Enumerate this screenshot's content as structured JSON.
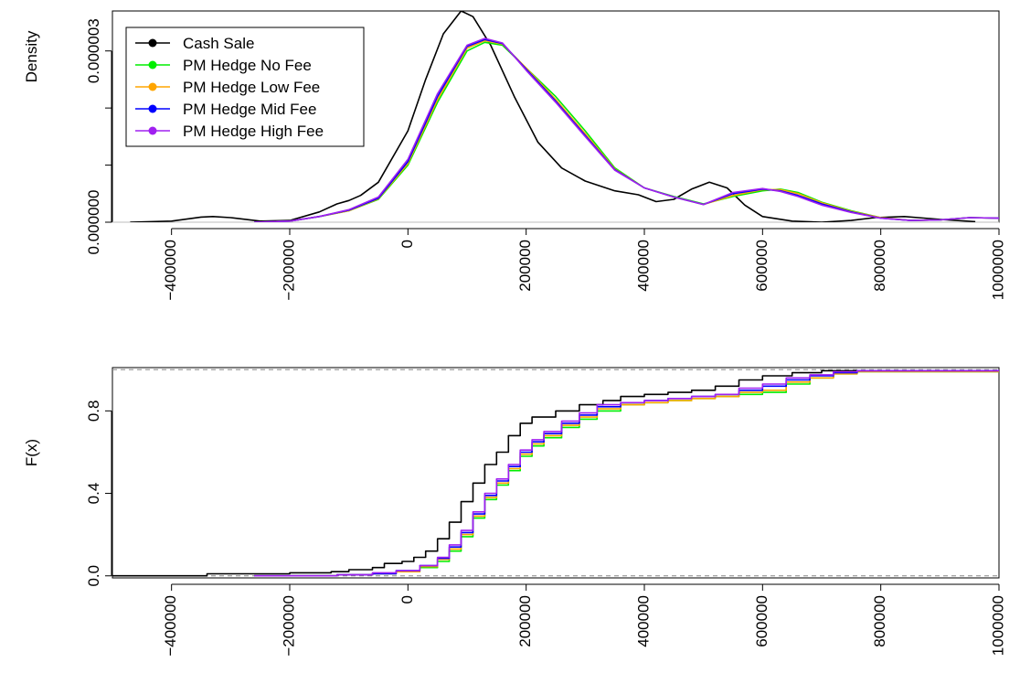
{
  "chart_data": [
    {
      "type": "line",
      "ylabel": "Density",
      "xlim": [
        -500000,
        1000000
      ],
      "ylim": [
        0,
        3.7e-06
      ],
      "x_ticks": [
        -400000,
        -200000,
        0,
        200000,
        400000,
        600000,
        800000,
        1000000
      ],
      "x_tick_labels": [
        "−400000",
        "−200000",
        "0",
        "200000",
        "400000",
        "600000",
        "800000",
        "1000000"
      ],
      "y_ticks": [
        0,
        1e-06,
        2e-06,
        3e-06
      ],
      "y_tick_labels": [
        "0.000000",
        "",
        "",
        "0.000003"
      ],
      "baseline": 0,
      "legend": {
        "position": "top-left",
        "entries": [
          {
            "label": "Cash Sale",
            "color": "#000000"
          },
          {
            "label": "PM Hedge No Fee",
            "color": "#00ee00"
          },
          {
            "label": "PM Hedge Low Fee",
            "color": "#ffa500"
          },
          {
            "label": "PM Hedge Mid Fee",
            "color": "#0000ff"
          },
          {
            "label": "PM Hedge High Fee",
            "color": "#a020f0"
          }
        ]
      },
      "series": [
        {
          "name": "Cash Sale",
          "color": "#000000",
          "x": [
            -470000,
            -400000,
            -350000,
            -330000,
            -300000,
            -250000,
            -200000,
            -150000,
            -120000,
            -100000,
            -80000,
            -50000,
            0,
            30000,
            60000,
            90000,
            110000,
            140000,
            180000,
            220000,
            260000,
            300000,
            350000,
            390000,
            420000,
            450000,
            480000,
            510000,
            540000,
            570000,
            600000,
            650000,
            700000,
            750000,
            790000,
            840000,
            900000,
            960000
          ],
          "y": [
            0.0,
            2e-08,
            9e-08,
            1e-07,
            8e-08,
            2e-08,
            3e-08,
            1.8e-07,
            3.2e-07,
            3.8e-07,
            4.7e-07,
            7e-07,
            1.6e-06,
            2.5e-06,
            3.3e-06,
            3.7e-06,
            3.6e-06,
            3.1e-06,
            2.2e-06,
            1.4e-06,
            9.5e-07,
            7.2e-07,
            5.5e-07,
            4.8e-07,
            3.6e-07,
            4e-07,
            5.8e-07,
            7e-07,
            6e-07,
            3e-07,
            1e-07,
            2e-08,
            0.0,
            3e-08,
            8e-08,
            1e-07,
            5e-08,
            1e-08
          ]
        },
        {
          "name": "PM Hedge No Fee",
          "color": "#00ee00",
          "x": [
            -260000,
            -200000,
            -150000,
            -100000,
            -50000,
            0,
            50000,
            100000,
            130000,
            160000,
            200000,
            250000,
            300000,
            350000,
            400000,
            450000,
            500000,
            550000,
            600000,
            630000,
            660000,
            700000,
            750000,
            800000,
            850000,
            900000,
            950000,
            1000000
          ],
          "y": [
            0.0,
            2e-08,
            1e-07,
            2e-07,
            4e-07,
            1e-06,
            2.1e-06,
            3e-06,
            3.15e-06,
            3.1e-06,
            2.7e-06,
            2.2e-06,
            1.6e-06,
            9.5e-07,
            6e-07,
            4.5e-07,
            3.2e-07,
            4.5e-07,
            5.5e-07,
            5.8e-07,
            5.2e-07,
            3.5e-07,
            2e-07,
            8e-08,
            3e-08,
            4e-08,
            8e-08,
            7e-08
          ]
        },
        {
          "name": "PM Hedge Low Fee",
          "color": "#ffa500",
          "x": [
            -260000,
            -200000,
            -150000,
            -100000,
            -50000,
            0,
            50000,
            100000,
            130000,
            160000,
            200000,
            250000,
            300000,
            350000,
            400000,
            450000,
            500000,
            550000,
            600000,
            630000,
            660000,
            700000,
            750000,
            800000,
            850000,
            900000,
            950000,
            1000000
          ],
          "y": [
            0.0,
            2e-08,
            1e-07,
            2e-07,
            4.1e-07,
            1.03e-06,
            2.15e-06,
            3.05e-06,
            3.18e-06,
            3.12e-06,
            2.7e-06,
            2.15e-06,
            1.55e-06,
            9.3e-07,
            6e-07,
            4.4e-07,
            3.1e-07,
            4.7e-07,
            5.7e-07,
            5.7e-07,
            5e-07,
            3.4e-07,
            1.9e-07,
            8e-08,
            3e-08,
            4e-08,
            8e-08,
            7e-08
          ]
        },
        {
          "name": "PM Hedge Mid Fee",
          "color": "#0000ff",
          "x": [
            -260000,
            -200000,
            -150000,
            -100000,
            -50000,
            0,
            50000,
            100000,
            130000,
            160000,
            200000,
            250000,
            300000,
            350000,
            400000,
            450000,
            500000,
            550000,
            600000,
            630000,
            660000,
            700000,
            750000,
            800000,
            850000,
            900000,
            950000,
            1000000
          ],
          "y": [
            0.0,
            2e-08,
            1e-07,
            2.1e-07,
            4.2e-07,
            1.06e-06,
            2.2e-06,
            3.08e-06,
            3.2e-06,
            3.13e-06,
            2.68e-06,
            2.12e-06,
            1.52e-06,
            9.2e-07,
            6e-07,
            4.4e-07,
            3.1e-07,
            5e-07,
            5.8e-07,
            5.5e-07,
            4.7e-07,
            3.2e-07,
            1.8e-07,
            7e-08,
            3e-08,
            4e-08,
            8e-08,
            7e-08
          ]
        },
        {
          "name": "PM Hedge High Fee",
          "color": "#a020f0",
          "x": [
            -260000,
            -200000,
            -150000,
            -100000,
            -50000,
            0,
            50000,
            100000,
            130000,
            160000,
            200000,
            250000,
            300000,
            350000,
            400000,
            450000,
            500000,
            550000,
            600000,
            630000,
            660000,
            700000,
            750000,
            800000,
            850000,
            900000,
            950000,
            1000000
          ],
          "y": [
            0.0,
            2e-08,
            1e-07,
            2.2e-07,
            4.4e-07,
            1.1e-06,
            2.25e-06,
            3.1e-06,
            3.22e-06,
            3.14e-06,
            2.66e-06,
            2.1e-06,
            1.5e-06,
            9.1e-07,
            6e-07,
            4.4e-07,
            3.1e-07,
            5.2e-07,
            5.9e-07,
            5.4e-07,
            4.5e-07,
            3e-07,
            1.7e-07,
            7e-08,
            3e-08,
            4e-08,
            8e-08,
            7e-08
          ]
        }
      ]
    },
    {
      "type": "line",
      "step": true,
      "ylabel": "F(x)",
      "xlim": [
        -500000,
        1000000
      ],
      "ylim": [
        -0.01,
        1.01
      ],
      "x_ticks": [
        -400000,
        -200000,
        0,
        200000,
        400000,
        600000,
        800000,
        1000000
      ],
      "x_tick_labels": [
        "−400000",
        "−200000",
        "0",
        "200000",
        "400000",
        "600000",
        "800000",
        "1000000"
      ],
      "y_ticks": [
        0,
        0.4,
        0.8
      ],
      "y_tick_labels": [
        "0.0",
        "0.4",
        "0.8"
      ],
      "reference_lines": [
        0,
        1
      ],
      "series": [
        {
          "name": "Cash Sale",
          "color": "#000000",
          "x": [
            -500000,
            -340000,
            -200000,
            -130000,
            -100000,
            -60000,
            -40000,
            -10000,
            10000,
            30000,
            50000,
            70000,
            90000,
            110000,
            130000,
            150000,
            170000,
            190000,
            210000,
            250000,
            290000,
            330000,
            360000,
            400000,
            440000,
            480000,
            520000,
            560000,
            600000,
            650000,
            700000,
            1000000
          ],
          "y": [
            0.0,
            0.01,
            0.015,
            0.02,
            0.03,
            0.04,
            0.06,
            0.07,
            0.09,
            0.12,
            0.18,
            0.26,
            0.36,
            0.45,
            0.54,
            0.6,
            0.68,
            0.74,
            0.77,
            0.8,
            0.83,
            0.85,
            0.87,
            0.88,
            0.89,
            0.9,
            0.92,
            0.95,
            0.97,
            0.985,
            0.995,
            1.0
          ]
        },
        {
          "name": "PM Hedge No Fee",
          "color": "#00ee00",
          "x": [
            -260000,
            -120000,
            -60000,
            -20000,
            20000,
            50000,
            70000,
            90000,
            110000,
            130000,
            150000,
            170000,
            190000,
            210000,
            230000,
            260000,
            290000,
            320000,
            360000,
            400000,
            440000,
            480000,
            520000,
            560000,
            600000,
            640000,
            680000,
            720000,
            760000,
            1000000
          ],
          "y": [
            0.0,
            0.005,
            0.01,
            0.02,
            0.04,
            0.07,
            0.12,
            0.19,
            0.28,
            0.37,
            0.44,
            0.51,
            0.58,
            0.63,
            0.67,
            0.72,
            0.76,
            0.8,
            0.83,
            0.84,
            0.85,
            0.86,
            0.87,
            0.88,
            0.89,
            0.93,
            0.96,
            0.98,
            0.99,
            1.0
          ]
        },
        {
          "name": "PM Hedge Low Fee",
          "color": "#ffa500",
          "x": [
            -260000,
            -120000,
            -60000,
            -20000,
            20000,
            50000,
            70000,
            90000,
            110000,
            130000,
            150000,
            170000,
            190000,
            210000,
            230000,
            260000,
            290000,
            320000,
            360000,
            400000,
            440000,
            480000,
            520000,
            560000,
            600000,
            640000,
            680000,
            720000,
            760000,
            1000000
          ],
          "y": [
            0.0,
            0.005,
            0.01,
            0.02,
            0.045,
            0.08,
            0.13,
            0.2,
            0.29,
            0.38,
            0.45,
            0.52,
            0.59,
            0.64,
            0.68,
            0.73,
            0.77,
            0.81,
            0.83,
            0.84,
            0.85,
            0.86,
            0.87,
            0.89,
            0.9,
            0.94,
            0.96,
            0.98,
            0.99,
            1.0
          ]
        },
        {
          "name": "PM Hedge Mid Fee",
          "color": "#0000ff",
          "x": [
            -260000,
            -120000,
            -60000,
            -20000,
            20000,
            50000,
            70000,
            90000,
            110000,
            130000,
            150000,
            170000,
            190000,
            210000,
            230000,
            260000,
            290000,
            320000,
            360000,
            400000,
            440000,
            480000,
            520000,
            560000,
            600000,
            640000,
            680000,
            720000,
            760000,
            1000000
          ],
          "y": [
            0.0,
            0.005,
            0.01,
            0.025,
            0.05,
            0.085,
            0.14,
            0.21,
            0.3,
            0.39,
            0.46,
            0.53,
            0.6,
            0.65,
            0.69,
            0.74,
            0.78,
            0.82,
            0.84,
            0.85,
            0.86,
            0.87,
            0.88,
            0.9,
            0.92,
            0.95,
            0.97,
            0.985,
            0.995,
            1.0
          ]
        },
        {
          "name": "PM Hedge High Fee",
          "color": "#a020f0",
          "x": [
            -260000,
            -120000,
            -60000,
            -20000,
            20000,
            50000,
            70000,
            90000,
            110000,
            130000,
            150000,
            170000,
            190000,
            210000,
            230000,
            260000,
            290000,
            320000,
            360000,
            400000,
            440000,
            480000,
            520000,
            560000,
            600000,
            640000,
            680000,
            720000,
            760000,
            1000000
          ],
          "y": [
            0.0,
            0.005,
            0.015,
            0.025,
            0.05,
            0.09,
            0.15,
            0.22,
            0.31,
            0.4,
            0.47,
            0.54,
            0.61,
            0.66,
            0.7,
            0.75,
            0.79,
            0.83,
            0.84,
            0.85,
            0.86,
            0.87,
            0.88,
            0.91,
            0.93,
            0.96,
            0.975,
            0.99,
            0.995,
            1.0
          ]
        }
      ]
    }
  ]
}
